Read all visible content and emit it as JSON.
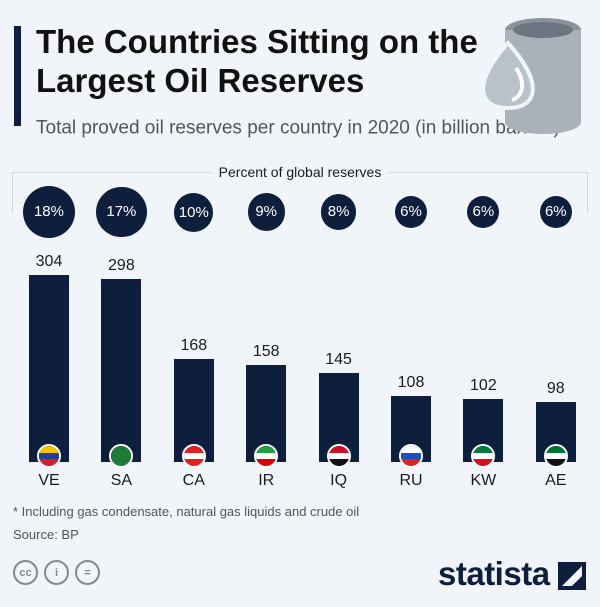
{
  "title": "The Countries Sitting on the Largest Oil Reserves",
  "subtitle": "Total proved oil reserves per country in 2020 (in billion barrels)",
  "subtitle_mark": "*",
  "percent_header": "Percent of global reserves",
  "footnote": "* Including gas condensate, natural gas liquids and crude oil",
  "source": "Source: BP",
  "brand": "statista",
  "license_icons": [
    "cc-icon",
    "attribution-icon",
    "no-derivatives-icon"
  ],
  "colors": {
    "bar": "#0d1f3c",
    "background": "#f1f5f9"
  },
  "chart_data": {
    "type": "bar",
    "title": "The Countries Sitting on the Largest Oil Reserves",
    "ylabel": "billion barrels",
    "categories": [
      "VE",
      "SA",
      "CA",
      "IR",
      "IQ",
      "RU",
      "KW",
      "AE"
    ],
    "values": [
      304,
      298,
      168,
      158,
      145,
      108,
      102,
      98
    ],
    "percent_global": [
      "18%",
      "17%",
      "10%",
      "9%",
      "8%",
      "6%",
      "6%",
      "6%"
    ],
    "percent_values": [
      18,
      17,
      10,
      9,
      8,
      6,
      6,
      6
    ],
    "ylim": [
      0,
      304
    ],
    "flags": [
      [
        "#f5c400",
        "#1f3f9a",
        "#cf1f2e"
      ],
      [
        "#1e7b3a",
        "#1e7b3a",
        "#1e7b3a"
      ],
      [
        "#e41d23",
        "#ffffff",
        "#e41d23"
      ],
      [
        "#239f40",
        "#ffffff",
        "#da0000"
      ],
      [
        "#ce1126",
        "#ffffff",
        "#111111"
      ],
      [
        "#ffffff",
        "#1c4fbf",
        "#d52b1e"
      ],
      [
        "#007a3d",
        "#ffffff",
        "#ce1126"
      ],
      [
        "#00732f",
        "#ffffff",
        "#111111"
      ]
    ]
  }
}
